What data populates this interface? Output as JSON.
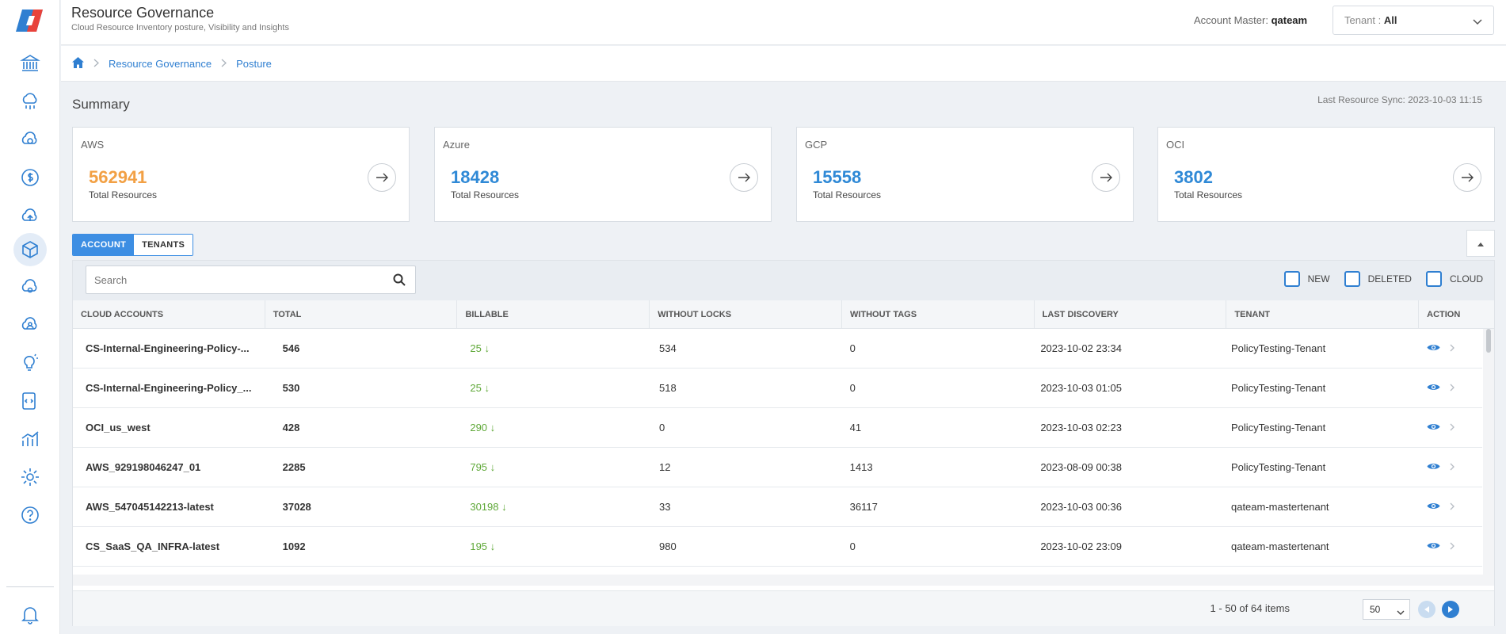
{
  "header": {
    "title": "Resource Governance",
    "subtitle": "Cloud Resource Inventory posture, Visibility and Insights",
    "account_master_label": "Account Master:",
    "account_master_value": "qateam",
    "tenant_label": "Tenant :",
    "tenant_value": "All"
  },
  "breadcrumb": {
    "items": [
      "Resource Governance",
      "Posture"
    ]
  },
  "summary": {
    "title": "Summary",
    "last_sync": "Last Resource Sync: 2023-10-03 11:15",
    "cards": [
      {
        "name": "AWS",
        "value": "562941",
        "label": "Total Resources"
      },
      {
        "name": "Azure",
        "value": "18428",
        "label": "Total Resources"
      },
      {
        "name": "GCP",
        "value": "15558",
        "label": "Total Resources"
      },
      {
        "name": "OCI",
        "value": "3802",
        "label": "Total Resources"
      }
    ]
  },
  "view_toggle": {
    "account": "ACCOUNT",
    "tenants": "TENANTS"
  },
  "search": {
    "placeholder": "Search",
    "value": ""
  },
  "filters": {
    "new": "NEW",
    "deleted": "DELETED",
    "cloud": "CLOUD"
  },
  "table": {
    "columns": [
      "CLOUD ACCOUNTS",
      "TOTAL",
      "BILLABLE",
      "WITHOUT LOCKS",
      "WITHOUT TAGS",
      "LAST DISCOVERY",
      "TENANT",
      "ACTION"
    ],
    "rows": [
      {
        "account": "CS-Internal-Engineering-Policy-...",
        "total": "546",
        "billable": "25",
        "locks": "534",
        "tags": "0",
        "discovery": "2023-10-02 23:34",
        "tenant": "PolicyTesting-Tenant"
      },
      {
        "account": "CS-Internal-Engineering-Policy_...",
        "total": "530",
        "billable": "25",
        "locks": "518",
        "tags": "0",
        "discovery": "2023-10-03 01:05",
        "tenant": "PolicyTesting-Tenant"
      },
      {
        "account": "OCI_us_west",
        "total": "428",
        "billable": "290",
        "locks": "0",
        "tags": "41",
        "discovery": "2023-10-03 02:23",
        "tenant": "PolicyTesting-Tenant"
      },
      {
        "account": "AWS_929198046247_01",
        "total": "2285",
        "billable": "795",
        "locks": "12",
        "tags": "1413",
        "discovery": "2023-08-09 00:38",
        "tenant": "PolicyTesting-Tenant"
      },
      {
        "account": "AWS_547045142213-latest",
        "total": "37028",
        "billable": "30198",
        "locks": "33",
        "tags": "36117",
        "discovery": "2023-10-03 00:36",
        "tenant": "qateam-mastertenant"
      },
      {
        "account": "CS_SaaS_QA_INFRA-latest",
        "total": "1092",
        "billable": "195",
        "locks": "980",
        "tags": "0",
        "discovery": "2023-10-02 23:09",
        "tenant": "qateam-mastertenant"
      }
    ]
  },
  "pagination": {
    "info": "1 - 50 of 64 items",
    "page_size": "50"
  },
  "colors": {
    "primary": "#2f7fd1",
    "aws_orange": "#f2a044",
    "billable_green": "#5fa838"
  }
}
